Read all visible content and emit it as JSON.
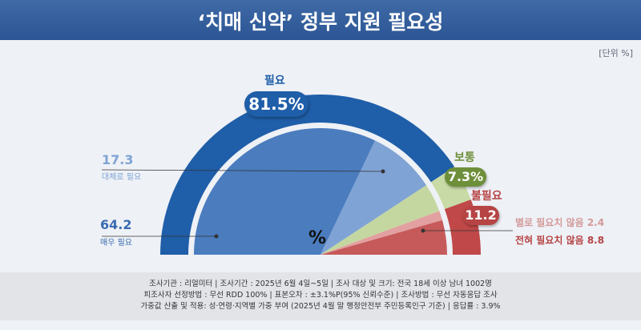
{
  "header": {
    "title": "‘치매 신약’ 정부 지원 필요성",
    "unit": "[단위 %]"
  },
  "chart_data": {
    "type": "pie",
    "title": "‘치매 신약’ 정부 지원 필요성",
    "center_label": "%",
    "outer": [
      {
        "name": "필요",
        "value": 81.5,
        "label": "81.5%",
        "color": "#1f5ea8"
      },
      {
        "name": "보통",
        "value": 7.3,
        "label": "7.3%",
        "color": "#6e8f3a"
      },
      {
        "name": "불필요",
        "value": 11.2,
        "label": "11.2",
        "color": "#b64444"
      }
    ],
    "inner": [
      {
        "name": "매우 필요",
        "value": 64.2,
        "color": "#4a7cbe"
      },
      {
        "name": "대체로 필요",
        "value": 17.3,
        "color": "#7fa3d4"
      },
      {
        "name": "보통",
        "value": 7.3,
        "color": "#c4d7a0"
      },
      {
        "name": "별로 필요치 않음",
        "value": 2.4,
        "color": "#e3a0a0"
      },
      {
        "name": "전혀 필요치 않음",
        "value": 8.8,
        "color": "#c65a5a"
      }
    ],
    "outer_colors": [
      "#1f5ea8",
      "#c8dba6",
      "#c04848"
    ]
  },
  "labels": {
    "very_val": "64.2",
    "very": "매우 필요",
    "some_val": "17.3",
    "some": "대체로 필요",
    "notmuch": "별로 필요치 않음 2.4",
    "notall": "전혀 필요치 않음 8.8"
  },
  "footer": [
    "조사기관 : 리얼미터  |  조사기간 : 2025년 6월 4일~5일 | 조사 대상 및 크기: 전국 18세 이상 남녀 1002명",
    "피조사자 선정방법 : 무선 RDD 100% | 표본오차 : ±3.1%P(95% 신뢰수준) | 조사방법 : 무선 자동응답 조사",
    "가중값 산출 및 적용: 성·연령·지역별 가중 부여 (2025년 4월 말 행정안전부 주민등록인구 기준) | 응답률 : 3.9%"
  ]
}
